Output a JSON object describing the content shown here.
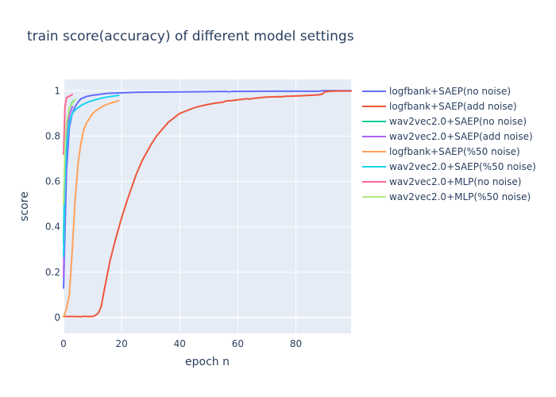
{
  "chart_data": {
    "type": "line",
    "title": "train score(accuracy) of different model settings",
    "xlabel": "epoch n",
    "ylabel": "score",
    "xlim": [
      0,
      99
    ],
    "ylim": [
      -0.07,
      1.05
    ],
    "xticks": [
      0,
      20,
      40,
      60,
      80
    ],
    "yticks": [
      0,
      0.2,
      0.4,
      0.6,
      0.8,
      1
    ],
    "ytick_labels": [
      "0",
      "0.2",
      "0.4",
      "0.6",
      "0.8",
      "1"
    ],
    "grid": true,
    "legend_position": "right",
    "series": [
      {
        "name": "logfbank+SAEP(no noise)",
        "color": "#636efa",
        "x": [
          0,
          1,
          2,
          3,
          4,
          5,
          6,
          7,
          8,
          10,
          12,
          14,
          16,
          18,
          20,
          25,
          30,
          40,
          50,
          56,
          57,
          58,
          60,
          70,
          80,
          88,
          89,
          90,
          95,
          99
        ],
        "y": [
          0.13,
          0.65,
          0.84,
          0.9,
          0.93,
          0.95,
          0.965,
          0.97,
          0.975,
          0.98,
          0.983,
          0.987,
          0.989,
          0.99,
          0.991,
          0.993,
          0.994,
          0.995,
          0.996,
          0.997,
          0.995,
          0.997,
          0.997,
          0.998,
          0.998,
          0.998,
          1.0,
          1.0,
          1.0,
          1.0
        ]
      },
      {
        "name": "logfbank+SAEP(add noise)",
        "color": "#ef553b",
        "x": [
          0,
          2,
          4,
          6,
          7,
          8,
          10,
          11,
          12,
          13,
          14,
          16,
          18,
          20,
          22,
          25,
          27,
          30,
          32,
          34,
          36,
          38,
          39,
          40,
          42,
          45,
          48,
          50,
          52,
          55,
          56,
          58,
          60,
          62,
          63,
          64,
          65,
          66,
          68,
          70,
          72,
          74,
          75,
          76,
          78,
          80,
          82,
          85,
          88,
          89,
          90,
          92,
          95,
          99
        ],
        "y": [
          0.005,
          0.005,
          0.005,
          0.004,
          0.006,
          0.005,
          0.005,
          0.01,
          0.02,
          0.05,
          0.12,
          0.25,
          0.35,
          0.44,
          0.52,
          0.63,
          0.69,
          0.76,
          0.8,
          0.83,
          0.86,
          0.88,
          0.89,
          0.9,
          0.91,
          0.925,
          0.935,
          0.94,
          0.945,
          0.95,
          0.955,
          0.957,
          0.96,
          0.963,
          0.965,
          0.963,
          0.966,
          0.967,
          0.97,
          0.972,
          0.973,
          0.974,
          0.973,
          0.975,
          0.976,
          0.977,
          0.978,
          0.98,
          0.982,
          0.985,
          0.995,
          0.998,
          0.999,
          0.999
        ]
      },
      {
        "name": "wav2vec2.0+SAEP(no noise)",
        "color": "#00cc96",
        "x": [
          0,
          0.5,
          1,
          2,
          3,
          4
        ],
        "y": [
          0.33,
          0.72,
          0.85,
          0.92,
          0.95,
          0.96
        ]
      },
      {
        "name": "wav2vec2.0+SAEP(add noise)",
        "color": "#ab63fa",
        "x": [
          0,
          0.5,
          1,
          2,
          3
        ],
        "y": [
          0.18,
          0.55,
          0.78,
          0.89,
          0.93
        ]
      },
      {
        "name": "logfbank+SAEP(%50 noise)",
        "color": "#ffa15a",
        "x": [
          0,
          1,
          2,
          3,
          4,
          5,
          6,
          7,
          8,
          10,
          12,
          14,
          16,
          18,
          19
        ],
        "y": [
          0.003,
          0.04,
          0.1,
          0.3,
          0.52,
          0.68,
          0.77,
          0.83,
          0.86,
          0.9,
          0.92,
          0.935,
          0.945,
          0.952,
          0.957
        ]
      },
      {
        "name": "wav2vec2.0+SAEP(%50 noise)",
        "color": "#19d3f3",
        "x": [
          0,
          0.5,
          1,
          2,
          3,
          4,
          5,
          6,
          8,
          10,
          12,
          14,
          16,
          18,
          19
        ],
        "y": [
          0.27,
          0.6,
          0.76,
          0.86,
          0.9,
          0.915,
          0.925,
          0.935,
          0.948,
          0.957,
          0.964,
          0.97,
          0.974,
          0.978,
          0.98
        ]
      },
      {
        "name": "wav2vec2.0+MLP(no noise)",
        "color": "#ff6692",
        "x": [
          0,
          0.5,
          1,
          2,
          3
        ],
        "y": [
          0.72,
          0.93,
          0.97,
          0.976,
          0.983
        ]
      },
      {
        "name": "wav2vec2.0+MLP(%50 noise)",
        "color": "#b6e880",
        "x": [
          0,
          0.5,
          1,
          2,
          3,
          4
        ],
        "y": [
          0.5,
          0.75,
          0.86,
          0.92,
          0.945,
          0.96
        ]
      }
    ]
  }
}
